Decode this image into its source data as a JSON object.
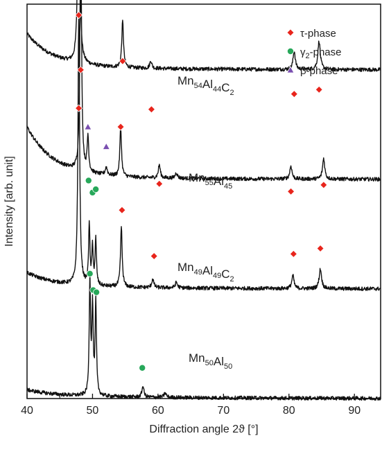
{
  "chart_data": {
    "type": "line",
    "title": "",
    "xlabel": "Diffraction angle 2ϑ [°]",
    "ylabel": "Intensity [arb. unit]",
    "xlim": [
      40,
      94
    ],
    "x_ticks": [
      40,
      50,
      60,
      70,
      80,
      90
    ],
    "x_tick_labels": [
      "40",
      "50",
      "60",
      "70",
      "80",
      "90"
    ],
    "y_ticks_shown": false,
    "grid": false,
    "legend_position": "top-right",
    "legend": [
      {
        "label": "τ-phase",
        "marker": "diamond",
        "color": "#e8251c"
      },
      {
        "label": "γ2-phase",
        "marker": "circle",
        "color": "#27a85a"
      },
      {
        "label": "β-phase",
        "marker": "triangle",
        "color": "#7a4fb0"
      }
    ],
    "series": [
      {
        "name": "Mn54Al44C2",
        "label_parts": [
          [
            "Mn",
            "54"
          ],
          [
            "Al",
            "44"
          ],
          [
            "C",
            "2"
          ]
        ],
        "color": "#111111",
        "offset": 3,
        "baseline": 0.3,
        "peaks": [
          {
            "x": 47.9,
            "h": 2.35,
            "w": 0.16
          },
          {
            "x": 54.6,
            "h": 0.42,
            "w": 0.16
          },
          {
            "x": 58.9,
            "h": 0.07,
            "w": 0.18
          },
          {
            "x": 80.8,
            "h": 0.17,
            "w": 0.2
          },
          {
            "x": 84.6,
            "h": 0.26,
            "w": 0.22
          }
        ],
        "markers": [
          {
            "phase": "tau",
            "x": 47.9,
            "y": 3.5
          },
          {
            "phase": "tau",
            "x": 54.6,
            "y": 3.08
          },
          {
            "phase": "tau",
            "x": 59.0,
            "y": 2.64
          },
          {
            "phase": "tau",
            "x": 80.8,
            "y": 2.78
          },
          {
            "phase": "tau",
            "x": 84.6,
            "y": 2.82
          }
        ]
      },
      {
        "name": "Mn55Al45",
        "label_parts": [
          [
            "Mn",
            "55"
          ],
          [
            "Al",
            "45"
          ]
        ],
        "color": "#111111",
        "offset": 2,
        "baseline": 0.45,
        "peaks": [
          {
            "x": 48.2,
            "h": 2.2,
            "w": 0.15
          },
          {
            "x": 49.3,
            "h": 0.32,
            "w": 0.14
          },
          {
            "x": 52.1,
            "h": 0.07,
            "w": 0.2
          },
          {
            "x": 54.3,
            "h": 0.45,
            "w": 0.15
          },
          {
            "x": 60.2,
            "h": 0.12,
            "w": 0.18
          },
          {
            "x": 62.8,
            "h": 0.05,
            "w": 0.2
          },
          {
            "x": 80.3,
            "h": 0.12,
            "w": 0.2
          },
          {
            "x": 85.3,
            "h": 0.19,
            "w": 0.2
          }
        ],
        "markers": [
          {
            "phase": "tau",
            "x": 48.2,
            "y": 3.0
          },
          {
            "phase": "beta",
            "x": 49.3,
            "y": 2.48
          },
          {
            "phase": "beta",
            "x": 52.1,
            "y": 2.3
          },
          {
            "phase": "tau",
            "x": 54.3,
            "y": 2.48
          },
          {
            "phase": "tau",
            "x": 60.2,
            "y": 1.96
          },
          {
            "phase": "tau",
            "x": 80.3,
            "y": 1.89
          },
          {
            "phase": "tau",
            "x": 85.3,
            "y": 1.95
          }
        ]
      },
      {
        "name": "Mn49Al49C2",
        "label_parts": [
          [
            "Mn",
            "49"
          ],
          [
            "Al",
            "49"
          ],
          [
            "C",
            "2"
          ]
        ],
        "color": "#111111",
        "offset": 1,
        "baseline": 0.12,
        "peaks": [
          {
            "x": 47.9,
            "h": 2.45,
            "w": 0.15
          },
          {
            "x": 49.5,
            "h": 0.55,
            "w": 0.12
          },
          {
            "x": 50.0,
            "h": 0.35,
            "w": 0.12
          },
          {
            "x": 50.5,
            "h": 0.42,
            "w": 0.12
          },
          {
            "x": 54.4,
            "h": 0.55,
            "w": 0.15
          },
          {
            "x": 59.2,
            "h": 0.08,
            "w": 0.18
          },
          {
            "x": 62.8,
            "h": 0.05,
            "w": 0.2
          },
          {
            "x": 80.6,
            "h": 0.12,
            "w": 0.2
          },
          {
            "x": 84.8,
            "h": 0.18,
            "w": 0.22
          }
        ],
        "markers": [
          {
            "phase": "tau",
            "x": 47.9,
            "y": 2.65
          },
          {
            "phase": "gamma2",
            "x": 49.4,
            "y": 1.99
          },
          {
            "phase": "gamma2",
            "x": 50.0,
            "y": 1.88
          },
          {
            "phase": "gamma2",
            "x": 50.5,
            "y": 1.91
          },
          {
            "phase": "tau",
            "x": 54.5,
            "y": 1.72
          },
          {
            "phase": "tau",
            "x": 59.4,
            "y": 1.3
          },
          {
            "phase": "tau",
            "x": 80.7,
            "y": 1.32
          },
          {
            "phase": "tau",
            "x": 84.8,
            "y": 1.37
          }
        ]
      },
      {
        "name": "Mn50Al50",
        "label_parts": [
          [
            "Mn",
            "50"
          ],
          [
            "Al",
            "50"
          ]
        ],
        "color": "#111111",
        "offset": 0,
        "baseline": 0.05,
        "peaks": [
          {
            "x": 49.6,
            "h": 1.05,
            "w": 0.12
          },
          {
            "x": 50.0,
            "h": 0.8,
            "w": 0.12
          },
          {
            "x": 50.5,
            "h": 0.85,
            "w": 0.12
          },
          {
            "x": 57.7,
            "h": 0.1,
            "w": 0.18
          },
          {
            "x": 61.1,
            "h": 0.04,
            "w": 0.2
          }
        ],
        "markers": [
          {
            "phase": "gamma2",
            "x": 49.6,
            "y": 1.14
          },
          {
            "phase": "gamma2",
            "x": 50.1,
            "y": 0.99
          },
          {
            "phase": "gamma2",
            "x": 50.6,
            "y": 0.97
          },
          {
            "phase": "gamma2",
            "x": 57.6,
            "y": 0.28
          }
        ]
      }
    ]
  }
}
